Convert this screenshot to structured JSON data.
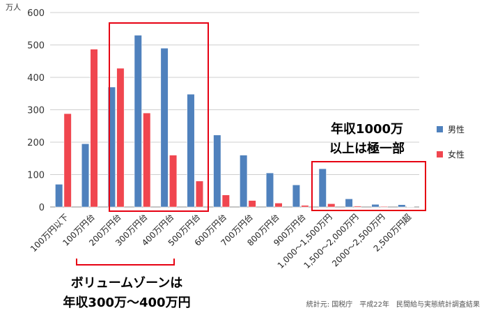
{
  "chart_data": {
    "type": "bar",
    "title": "",
    "ylabel": "万人",
    "ylim": [
      0,
      600
    ],
    "yticks": [
      0,
      100,
      200,
      300,
      400,
      500,
      600
    ],
    "grid": true,
    "legend_position": "right",
    "categories": [
      "100万円以下",
      "100万円台",
      "200万円台",
      "300万円台",
      "400万円台",
      "500万円台",
      "600万円台",
      "700万円台",
      "800万円台",
      "900万円台",
      "1,000～1,500万円",
      "1,500～2,000万円",
      "2000～2,500万円",
      "2,500万円超"
    ],
    "series": [
      {
        "name": "男性",
        "color": "#4f81bd",
        "values": [
          70,
          195,
          370,
          530,
          490,
          348,
          222,
          160,
          105,
          68,
          118,
          25,
          8,
          7
        ]
      },
      {
        "name": "女性",
        "color": "#f0464f",
        "values": [
          288,
          487,
          428,
          290,
          160,
          80,
          37,
          20,
          12,
          5,
          10,
          3,
          2,
          1
        ]
      }
    ]
  },
  "annotations": {
    "volume_line1": "ボリュームゾーンは",
    "volume_line2": "年収300万～400万円",
    "high_line1": "年収1000万",
    "high_line2": "以上は極一部",
    "source": "統計元: 国税庁　平成22年　民間給与実態統計調査結果",
    "box_color": "#e60012"
  }
}
